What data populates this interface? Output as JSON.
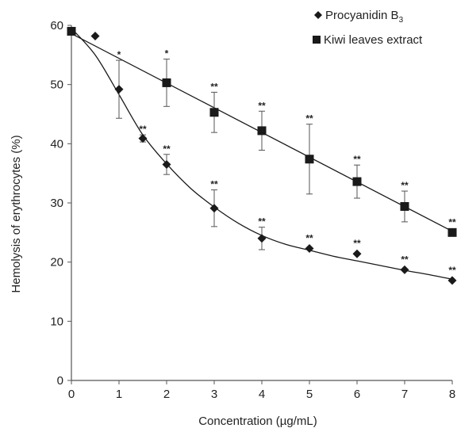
{
  "chart_data": {
    "type": "scatter",
    "xlabel": "Concentration (µg/mL)",
    "ylabel": "Hemolysis of erythrocytes (%)",
    "xlim": [
      0,
      8
    ],
    "ylim": [
      0,
      60
    ],
    "x_ticks": [
      "0",
      "1",
      "2",
      "3",
      "4",
      "5",
      "6",
      "7",
      "8"
    ],
    "y_ticks": [
      "0",
      "10",
      "20",
      "30",
      "40",
      "50",
      "60"
    ],
    "grid": false,
    "legend_position": "top-right",
    "series": [
      {
        "name": "Procyanidin B",
        "name_subscript": "3",
        "marker": "diamond",
        "color": "#1a1a1a",
        "points": [
          {
            "x": 0,
            "y": 59,
            "err": 0,
            "sig": ""
          },
          {
            "x": 0.5,
            "y": 58.2,
            "err": 0,
            "sig": ""
          },
          {
            "x": 1,
            "y": 49.2,
            "err": 4.9,
            "sig": "*"
          },
          {
            "x": 1.5,
            "y": 40.9,
            "err": 0.6,
            "sig": "**"
          },
          {
            "x": 2,
            "y": 36.5,
            "err": 1.7,
            "sig": "**"
          },
          {
            "x": 3,
            "y": 29.1,
            "err": 3.1,
            "sig": "**"
          },
          {
            "x": 4,
            "y": 24.0,
            "err": 1.9,
            "sig": "**"
          },
          {
            "x": 5,
            "y": 22.3,
            "err": 0,
            "sig": "**"
          },
          {
            "x": 6,
            "y": 21.4,
            "err": 0,
            "sig": "**"
          },
          {
            "x": 7,
            "y": 18.7,
            "err": 0,
            "sig": "**"
          },
          {
            "x": 8,
            "y": 16.9,
            "err": 0,
            "sig": "**"
          }
        ],
        "trend": {
          "x": [
            0,
            0.5,
            1,
            1.5,
            2,
            2.5,
            3,
            3.5,
            4,
            4.5,
            5,
            5.5,
            6,
            6.5,
            7,
            7.5,
            8
          ],
          "y": [
            59.5,
            55,
            48.3,
            41.5,
            36.6,
            32.5,
            29.3,
            26.6,
            24.5,
            23.0,
            22.0,
            21.0,
            20.2,
            19.4,
            18.6,
            17.9,
            17.1
          ]
        }
      },
      {
        "name": "Kiwi leaves extract",
        "marker": "square",
        "color": "#1a1a1a",
        "points": [
          {
            "x": 0,
            "y": 59,
            "err": 0,
            "sig": ""
          },
          {
            "x": 2,
            "y": 50.3,
            "err": 4.0,
            "sig": "*"
          },
          {
            "x": 3,
            "y": 45.3,
            "err": 3.4,
            "sig": "**"
          },
          {
            "x": 4,
            "y": 42.2,
            "err": 3.3,
            "sig": "**"
          },
          {
            "x": 5,
            "y": 37.4,
            "err": 5.9,
            "sig": "**"
          },
          {
            "x": 6,
            "y": 33.6,
            "err": 2.8,
            "sig": "**"
          },
          {
            "x": 7,
            "y": 29.4,
            "err": 2.6,
            "sig": "**"
          },
          {
            "x": 8,
            "y": 25.0,
            "err": 0,
            "sig": "**"
          }
        ],
        "trend": {
          "x": [
            0,
            8
          ],
          "y": [
            58.6,
            25.2
          ]
        }
      }
    ]
  }
}
